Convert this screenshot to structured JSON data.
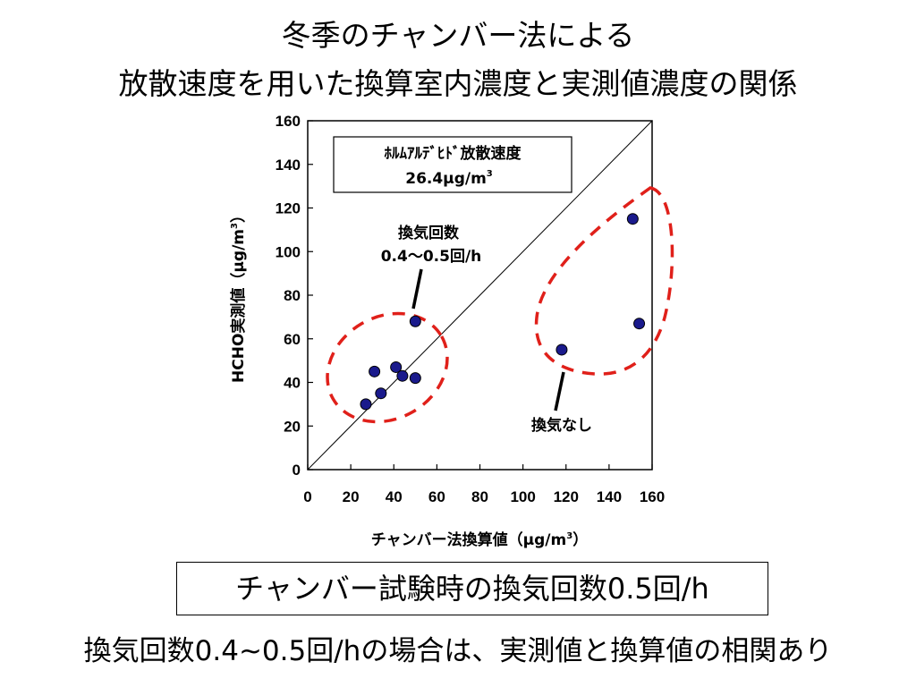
{
  "title": {
    "line1": "冬季のチャンバー法による",
    "line2": "放散速度を用いた換算室内濃度と実測値濃度の関係"
  },
  "chart_data": {
    "type": "scatter",
    "xlabel": "チャンバー法換算値（μg/m",
    "xlabel_sup": "3",
    "xlabel_end": "）",
    "ylabel": "HCHO実測値（μg/m",
    "ylabel_sup": "3",
    "ylabel_end": "）",
    "xlim": [
      0,
      160
    ],
    "ylim": [
      0,
      160
    ],
    "xticks": [
      "0",
      "20",
      "40",
      "60",
      "80",
      "100",
      "120",
      "140",
      "160"
    ],
    "yticks": [
      "0",
      "20",
      "40",
      "60",
      "80",
      "100",
      "120",
      "140",
      "160"
    ],
    "grid": false,
    "reference_line": "y=x",
    "series": [
      {
        "points": [
          {
            "x": 27,
            "y": 30
          },
          {
            "x": 31,
            "y": 45
          },
          {
            "x": 34,
            "y": 35
          },
          {
            "x": 41,
            "y": 47
          },
          {
            "x": 44,
            "y": 43
          },
          {
            "x": 50,
            "y": 42
          },
          {
            "x": 50,
            "y": 68
          },
          {
            "x": 118,
            "y": 55
          },
          {
            "x": 151,
            "y": 115
          },
          {
            "x": 154,
            "y": 67
          }
        ]
      }
    ],
    "annotations": {
      "box_line1": "ﾎﾙﾑｱﾙﾃﾞﾋﾄﾞ放散速度",
      "box_line2": "26.4μg/m",
      "box_line2_sup": "3",
      "group1_label_line1": "換気回数",
      "group1_label_line2": "0.4～0.5回/h",
      "group2_label": "換気なし"
    },
    "colors": {
      "marker": "#1a1a8c",
      "cluster_outline": "#e0201a",
      "line": "#000000"
    }
  },
  "note": "チャンバー試験時の換気回数0.5回/h",
  "conclusion": "換気回数0.4~0.5回/hの場合は、実測値と換算値の相関あり"
}
